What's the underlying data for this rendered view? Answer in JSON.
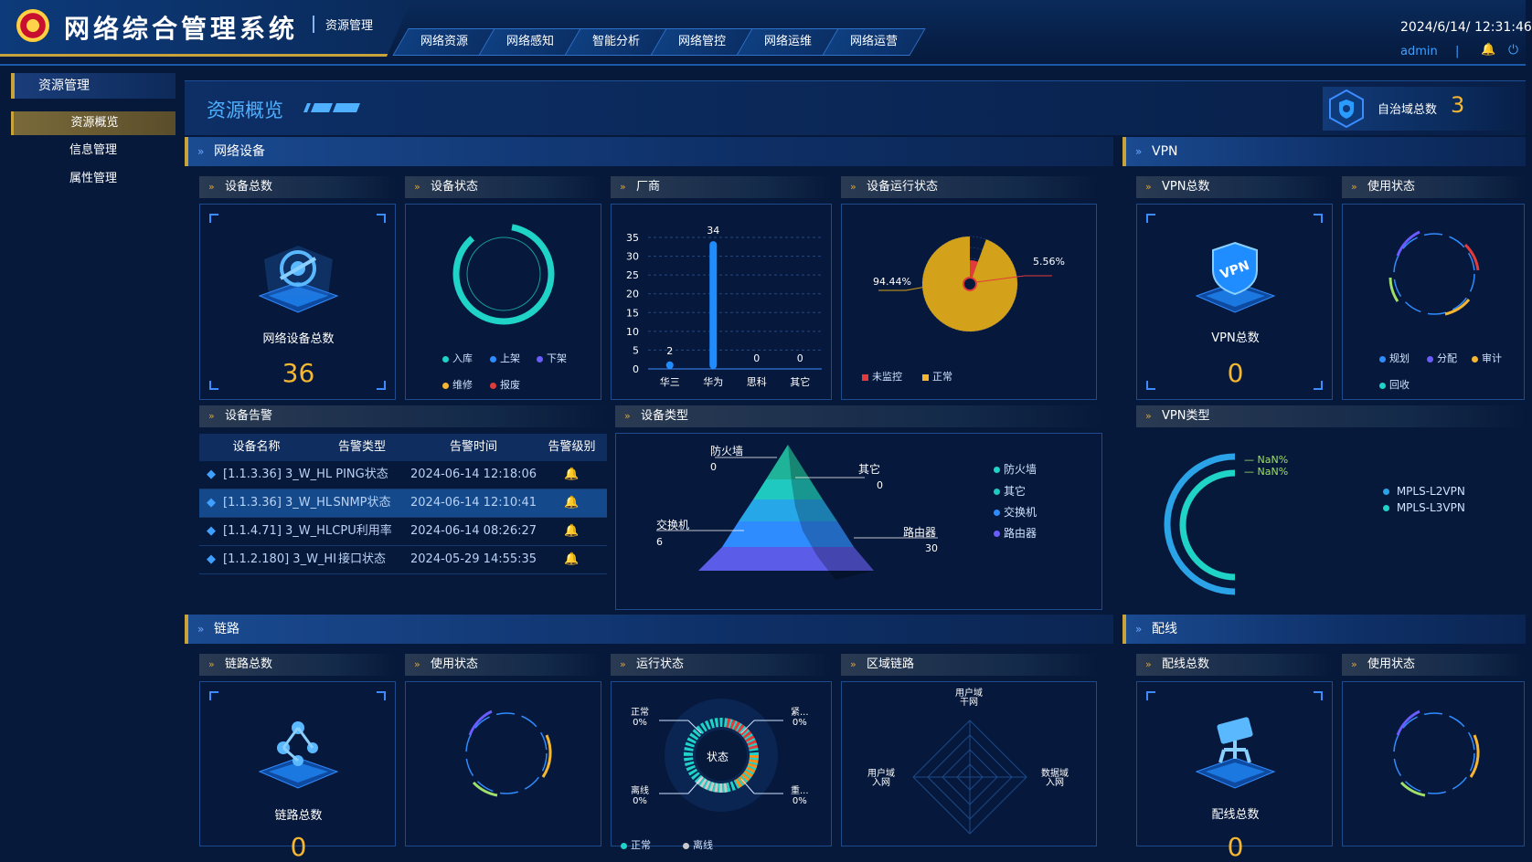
{
  "app": {
    "title": "网络综合管理系统",
    "subtitle": "资源管理"
  },
  "top_nav": [
    {
      "label": "网络资源",
      "active": true
    },
    {
      "label": "网络感知"
    },
    {
      "label": "智能分析"
    },
    {
      "label": "网络管控"
    },
    {
      "label": "网络运维"
    },
    {
      "label": "网络运营"
    }
  ],
  "header": {
    "datetime": "2024/6/14/ 12:31:46",
    "user": "admin",
    "separator": "|"
  },
  "sidebar": {
    "title": "资源管理",
    "items": [
      {
        "label": "资源概览",
        "active": true
      },
      {
        "label": "信息管理"
      },
      {
        "label": "属性管理"
      }
    ]
  },
  "page": {
    "title": "资源概览",
    "domain_label": "自治域总数",
    "domain_value": "3"
  },
  "sections": {
    "devices": "网络设备",
    "vpn": "VPN",
    "links": "链路",
    "wiring": "配线"
  },
  "device_total": {
    "head": "设备总数",
    "caption": "网络设备总数",
    "value": "36"
  },
  "device_status": {
    "head": "设备状态",
    "legend": [
      "入库",
      "上架",
      "下架",
      "维修",
      "报废"
    ]
  },
  "vendor": {
    "head": "厂商",
    "chart_data": {
      "type": "bar",
      "categories": [
        "华三",
        "华为",
        "思科",
        "其它"
      ],
      "values": [
        2,
        34,
        0,
        0
      ],
      "ylim": [
        0,
        35
      ],
      "yticks": [
        "0",
        "5",
        "10",
        "15",
        "20",
        "25",
        "30",
        "35"
      ]
    }
  },
  "run_status": {
    "head": "设备运行状态",
    "chart_data": {
      "type": "pie",
      "labels": [
        "未监控",
        "正常"
      ],
      "values": [
        5.56,
        94.44
      ],
      "value_labels": [
        "5.56%",
        "94.44%"
      ]
    }
  },
  "alarms": {
    "head": "设备告警",
    "columns": [
      "设备名称",
      "告警类型",
      "告警时间",
      "告警级别"
    ],
    "rows": [
      {
        "name": "[1.1.3.36] 3_W_HL",
        "type": "PING状态",
        "time": "2024-06-14 12:18:06",
        "level_color": "#ff8c1a"
      },
      {
        "name": "[1.1.3.36] 3_W_HL",
        "type": "SNMP状态",
        "time": "2024-06-14 12:10:41",
        "level_color": "#ff8c1a"
      },
      {
        "name": "[1.1.4.71] 3_W_HL",
        "type": "CPU利用率",
        "time": "2024-06-14 08:26:27",
        "level_color": "#ffc21a"
      },
      {
        "name": "[1.1.2.180] 3_W_HI",
        "type": "接口状态",
        "time": "2024-05-29 14:55:35",
        "level_color": "#ffc21a"
      }
    ]
  },
  "device_type": {
    "head": "设备类型",
    "items": [
      {
        "name": "防火墙",
        "value": "0"
      },
      {
        "name": "其它",
        "value": "0"
      },
      {
        "name": "交换机",
        "value": "6"
      },
      {
        "name": "路由器",
        "value": "30"
      }
    ]
  },
  "vpn_total": {
    "head": "VPN总数",
    "caption": "VPN总数",
    "value": "0"
  },
  "vpn_usage": {
    "head": "使用状态",
    "legend": [
      "规划",
      "分配",
      "审计",
      "回收"
    ]
  },
  "vpn_type": {
    "head": "VPN类型",
    "nan_labels": [
      "NaN%",
      "NaN%"
    ],
    "legend": [
      "MPLS-L2VPN",
      "MPLS-L3VPN"
    ]
  },
  "link_total": {
    "head": "链路总数",
    "caption": "链路总数",
    "value": "0"
  },
  "link_usage": {
    "head": "使用状态"
  },
  "link_run": {
    "head": "运行状态",
    "center": "状态",
    "labels": [
      {
        "name": "正常",
        "pct": "0%"
      },
      {
        "name": "紧...",
        "pct": "0%"
      },
      {
        "name": "离线",
        "pct": "0%"
      },
      {
        "name": "重...",
        "pct": "0%"
      }
    ],
    "legend": [
      "正常",
      "离线"
    ]
  },
  "region_link": {
    "head": "区域链路",
    "axes": [
      {
        "l1": "用户域",
        "l2": "干网"
      },
      {
        "l1": "数据域",
        "l2": "入网"
      },
      {
        "l1": "用户域",
        "l2": "入网"
      }
    ]
  },
  "wiring_total": {
    "head": "配线总数",
    "caption": "配线总数",
    "value": "0"
  },
  "wiring_usage": {
    "head": "使用状态"
  },
  "colors": {
    "accent": "#f5b731",
    "teal": "#1fd3c6",
    "blue": "#2f8cff",
    "bg": "#07193a"
  }
}
